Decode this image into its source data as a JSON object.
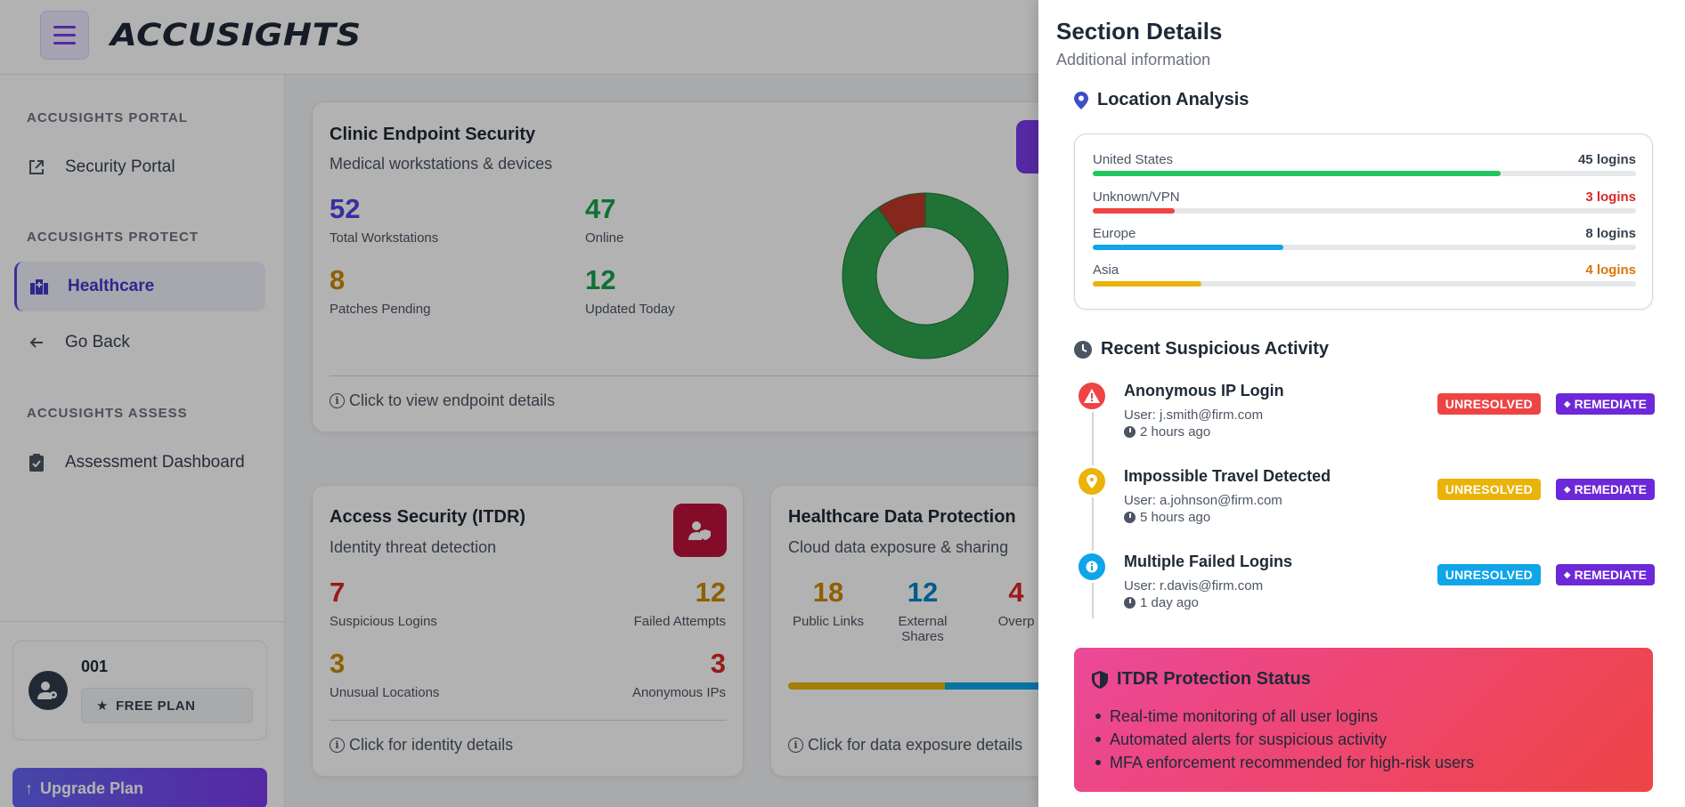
{
  "header": {
    "logo": "ACCUSIGHTS"
  },
  "sidebar": {
    "sections": [
      {
        "title": "ACCUSIGHTS PORTAL",
        "items": [
          {
            "label": "Security Portal",
            "icon": "external-link-icon"
          }
        ]
      },
      {
        "title": "ACCUSIGHTS PROTECT",
        "items": [
          {
            "label": "Healthcare",
            "icon": "hospital-icon",
            "active": true
          },
          {
            "label": "Go Back",
            "icon": "arrow-left-icon"
          }
        ]
      },
      {
        "title": "ACCUSIGHTS ASSESS",
        "items": [
          {
            "label": "Assessment Dashboard",
            "icon": "clipboard-check-icon"
          }
        ]
      }
    ],
    "user": {
      "name": "001",
      "plan": "FREE PLAN"
    },
    "upgrade_label": "Upgrade Plan"
  },
  "main": {
    "endpoint_card": {
      "title": "Clinic Endpoint Security",
      "subtitle": "Medical workstations & devices",
      "metrics": [
        {
          "value": "52",
          "label": "Total Workstations",
          "color": "#4f46e5"
        },
        {
          "value": "47",
          "label": "Online",
          "color": "#16a34a"
        },
        {
          "value": "8",
          "label": "Patches Pending",
          "color": "#ca8a04"
        },
        {
          "value": "12",
          "label": "Updated Today",
          "color": "#16a34a"
        }
      ],
      "footer": "Click to view endpoint details",
      "donut": {
        "online": 47,
        "offline": 5,
        "online_color": "#2ea44f",
        "offline_color": "#c0392b"
      }
    },
    "itdr_card": {
      "title": "Access Security (ITDR)",
      "subtitle": "Identity threat detection",
      "metrics": [
        {
          "value": "7",
          "label": "Suspicious Logins",
          "color": "#dc2626"
        },
        {
          "value": "12",
          "label": "Failed Attempts",
          "color": "#ca8a04"
        },
        {
          "value": "3",
          "label": "Unusual Locations",
          "color": "#ca8a04"
        },
        {
          "value": "3",
          "label": "Anonymous IPs",
          "color": "#dc2626"
        }
      ],
      "footer": "Click for identity details"
    },
    "data_card": {
      "title": "Healthcare Data Protection",
      "subtitle": "Cloud data exposure & sharing",
      "metrics": [
        {
          "value": "18",
          "label": "Public Links",
          "color": "#ca8a04"
        },
        {
          "value": "12",
          "label": "External Shares",
          "color": "#0284c7"
        },
        {
          "value": "4",
          "label": "Overp",
          "color": "#dc2626"
        }
      ],
      "footer": "Click for data exposure details"
    }
  },
  "panel": {
    "title": "Section Details",
    "subtitle": "Additional information",
    "location": {
      "title": "Location Analysis",
      "rows": [
        {
          "name": "United States",
          "count": "45 logins",
          "pct": 75,
          "color": "#22c55e",
          "count_color": "#374151"
        },
        {
          "name": "Unknown/VPN",
          "count": "3 logins",
          "pct": 15,
          "color": "#ef4444",
          "count_color": "#dc2626"
        },
        {
          "name": "Europe",
          "count": "8 logins",
          "pct": 35,
          "color": "#0ea5e9",
          "count_color": "#374151"
        },
        {
          "name": "Asia",
          "count": "4 logins",
          "pct": 20,
          "color": "#eab308",
          "count_color": "#d97706"
        }
      ]
    },
    "activity": {
      "title": "Recent Suspicious Activity",
      "items": [
        {
          "title": "Anonymous IP Login",
          "user": "User: j.smith@firm.com",
          "time": "2 hours ago",
          "status": "UNRESOLVED",
          "status_color": "#ef4444",
          "icon_color": "#ef4444",
          "icon": "warning-icon"
        },
        {
          "title": "Impossible Travel Detected",
          "user": "User: a.johnson@firm.com",
          "time": "5 hours ago",
          "status": "UNRESOLVED",
          "status_color": "#eab308",
          "icon_color": "#eab308",
          "icon": "map-pin-icon"
        },
        {
          "title": "Multiple Failed Logins",
          "user": "User: r.davis@firm.com",
          "time": "1 day ago",
          "status": "UNRESOLVED",
          "status_color": "#0ea5e9",
          "icon_color": "#0ea5e9",
          "icon": "info-icon"
        }
      ],
      "remediate_label": "REMEDIATE"
    },
    "itdr_status": {
      "title": "ITDR Protection Status",
      "points": [
        "Real-time monitoring of all user logins",
        "Automated alerts for suspicious activity",
        "MFA enforcement recommended for high-risk users"
      ]
    }
  }
}
